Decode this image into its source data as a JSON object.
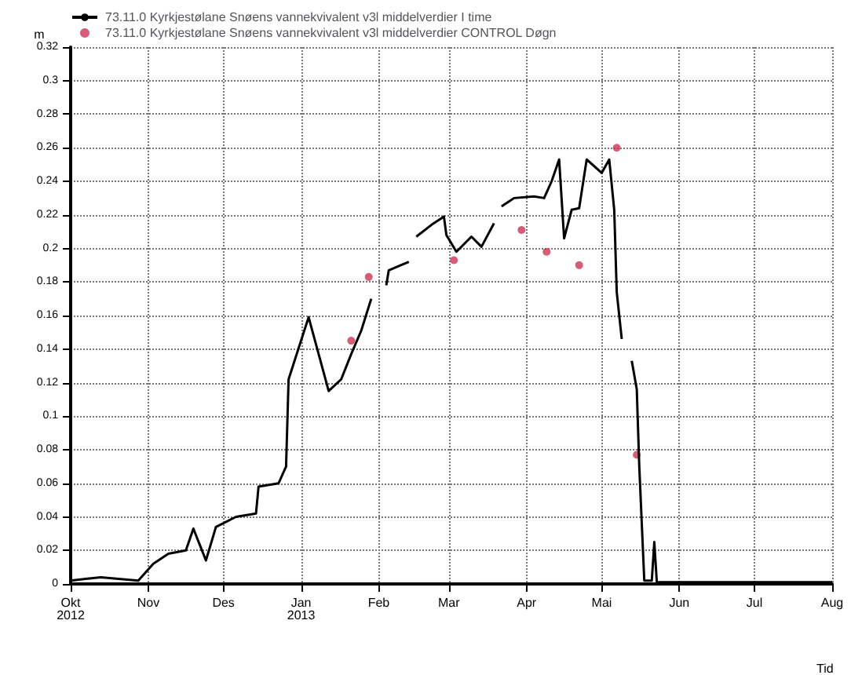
{
  "chart_data": {
    "type": "line",
    "ylabel": "m",
    "xlabel": "Tid",
    "grid": true,
    "legend": "top left",
    "xlim": [
      "2012-10-01",
      "2013-08-01"
    ],
    "xticks": [
      {
        "value": "2012-10-01",
        "label": "Okt\n2012"
      },
      {
        "value": "2012-11-01",
        "label": "Nov"
      },
      {
        "value": "2012-12-01",
        "label": "Des"
      },
      {
        "value": "2013-01-01",
        "label": "Jan\n2013"
      },
      {
        "value": "2013-02-01",
        "label": "Feb"
      },
      {
        "value": "2013-03-01",
        "label": "Mar"
      },
      {
        "value": "2013-04-01",
        "label": "Apr"
      },
      {
        "value": "2013-05-01",
        "label": "Mai"
      },
      {
        "value": "2013-06-01",
        "label": "Jun"
      },
      {
        "value": "2013-07-01",
        "label": "Jul"
      },
      {
        "value": "2013-08-01",
        "label": "Aug"
      }
    ],
    "ylim": [
      0,
      0.32
    ],
    "yticks": [
      0,
      0.02,
      0.04,
      0.06,
      0.08,
      0.1,
      0.12,
      0.14,
      0.16,
      0.18,
      0.2,
      0.22,
      0.24,
      0.26,
      0.28,
      0.3,
      0.32
    ],
    "series": [
      {
        "name": "73.11.0 Kyrkjestølane Snøens vannekvivalent v3l middelverdier I time",
        "color": "#000000",
        "x": [
          "2012-10-01",
          "2012-10-07",
          "2012-10-13",
          "2012-10-28",
          "2012-11-03",
          "2012-11-09",
          "2012-11-16",
          "2012-11-19",
          "2012-11-24",
          "2012-11-28",
          "2012-12-06",
          "2012-12-14",
          "2012-12-15",
          "2012-12-23",
          "2012-12-26",
          "2012-12-27",
          "2013-01-04",
          "2013-01-12",
          "2013-01-17",
          "2013-01-21",
          "2013-01-25",
          "2013-01-29",
          "2013-02-01",
          "2013-02-04",
          "2013-02-05",
          "2013-02-13",
          "2013-02-15",
          "2013-02-16",
          "2013-02-22",
          "2013-02-27",
          "2013-02-28",
          "2013-03-04",
          "2013-03-10",
          "2013-03-14",
          "2013-03-19",
          "2013-03-20",
          "2013-03-22",
          "2013-03-27",
          "2013-04-04",
          "2013-04-08",
          "2013-04-11",
          "2013-04-14",
          "2013-04-16",
          "2013-04-19",
          "2013-04-22",
          "2013-04-25",
          "2013-05-01",
          "2013-05-04",
          "2013-05-06",
          "2013-05-07",
          "2013-05-09",
          "2013-05-11",
          "2013-05-13",
          "2013-05-15",
          "2013-05-16",
          "2013-05-18",
          "2013-05-21",
          "2013-05-22",
          "2013-05-23",
          "2013-06-02",
          "2013-08-01"
        ],
        "values": [
          0.002,
          0.003,
          0.004,
          0.002,
          0.012,
          0.018,
          0.02,
          0.033,
          0.014,
          0.034,
          0.04,
          0.042,
          0.058,
          0.06,
          0.07,
          0.122,
          0.159,
          0.115,
          0.122,
          0.137,
          0.151,
          0.17,
          null,
          0.178,
          0.187,
          0.192,
          null,
          0.207,
          0.214,
          0.219,
          0.208,
          0.198,
          0.207,
          0.201,
          0.215,
          null,
          0.225,
          0.23,
          0.231,
          0.23,
          0.24,
          0.253,
          0.206,
          0.223,
          0.224,
          0.253,
          0.245,
          0.253,
          0.223,
          0.174,
          0.146,
          null,
          0.133,
          0.116,
          0.07,
          0.002,
          0.002,
          0.025,
          0.001,
          0.001,
          0.001
        ]
      },
      {
        "name": "73.11.0 Kyrkjestølane Snøens vannekvivalent v3l middelverdier CONTROL Døgn",
        "type": "scatter",
        "color": "#cc3355",
        "marker": "circle",
        "x": [
          "2013-01-21",
          "2013-01-28",
          "2013-03-03",
          "2013-03-30",
          "2013-04-09",
          "2013-04-22",
          "2013-05-07",
          "2013-05-15"
        ],
        "values": [
          0.145,
          0.183,
          0.193,
          0.211,
          0.198,
          0.19,
          0.26,
          0.077
        ]
      }
    ]
  }
}
